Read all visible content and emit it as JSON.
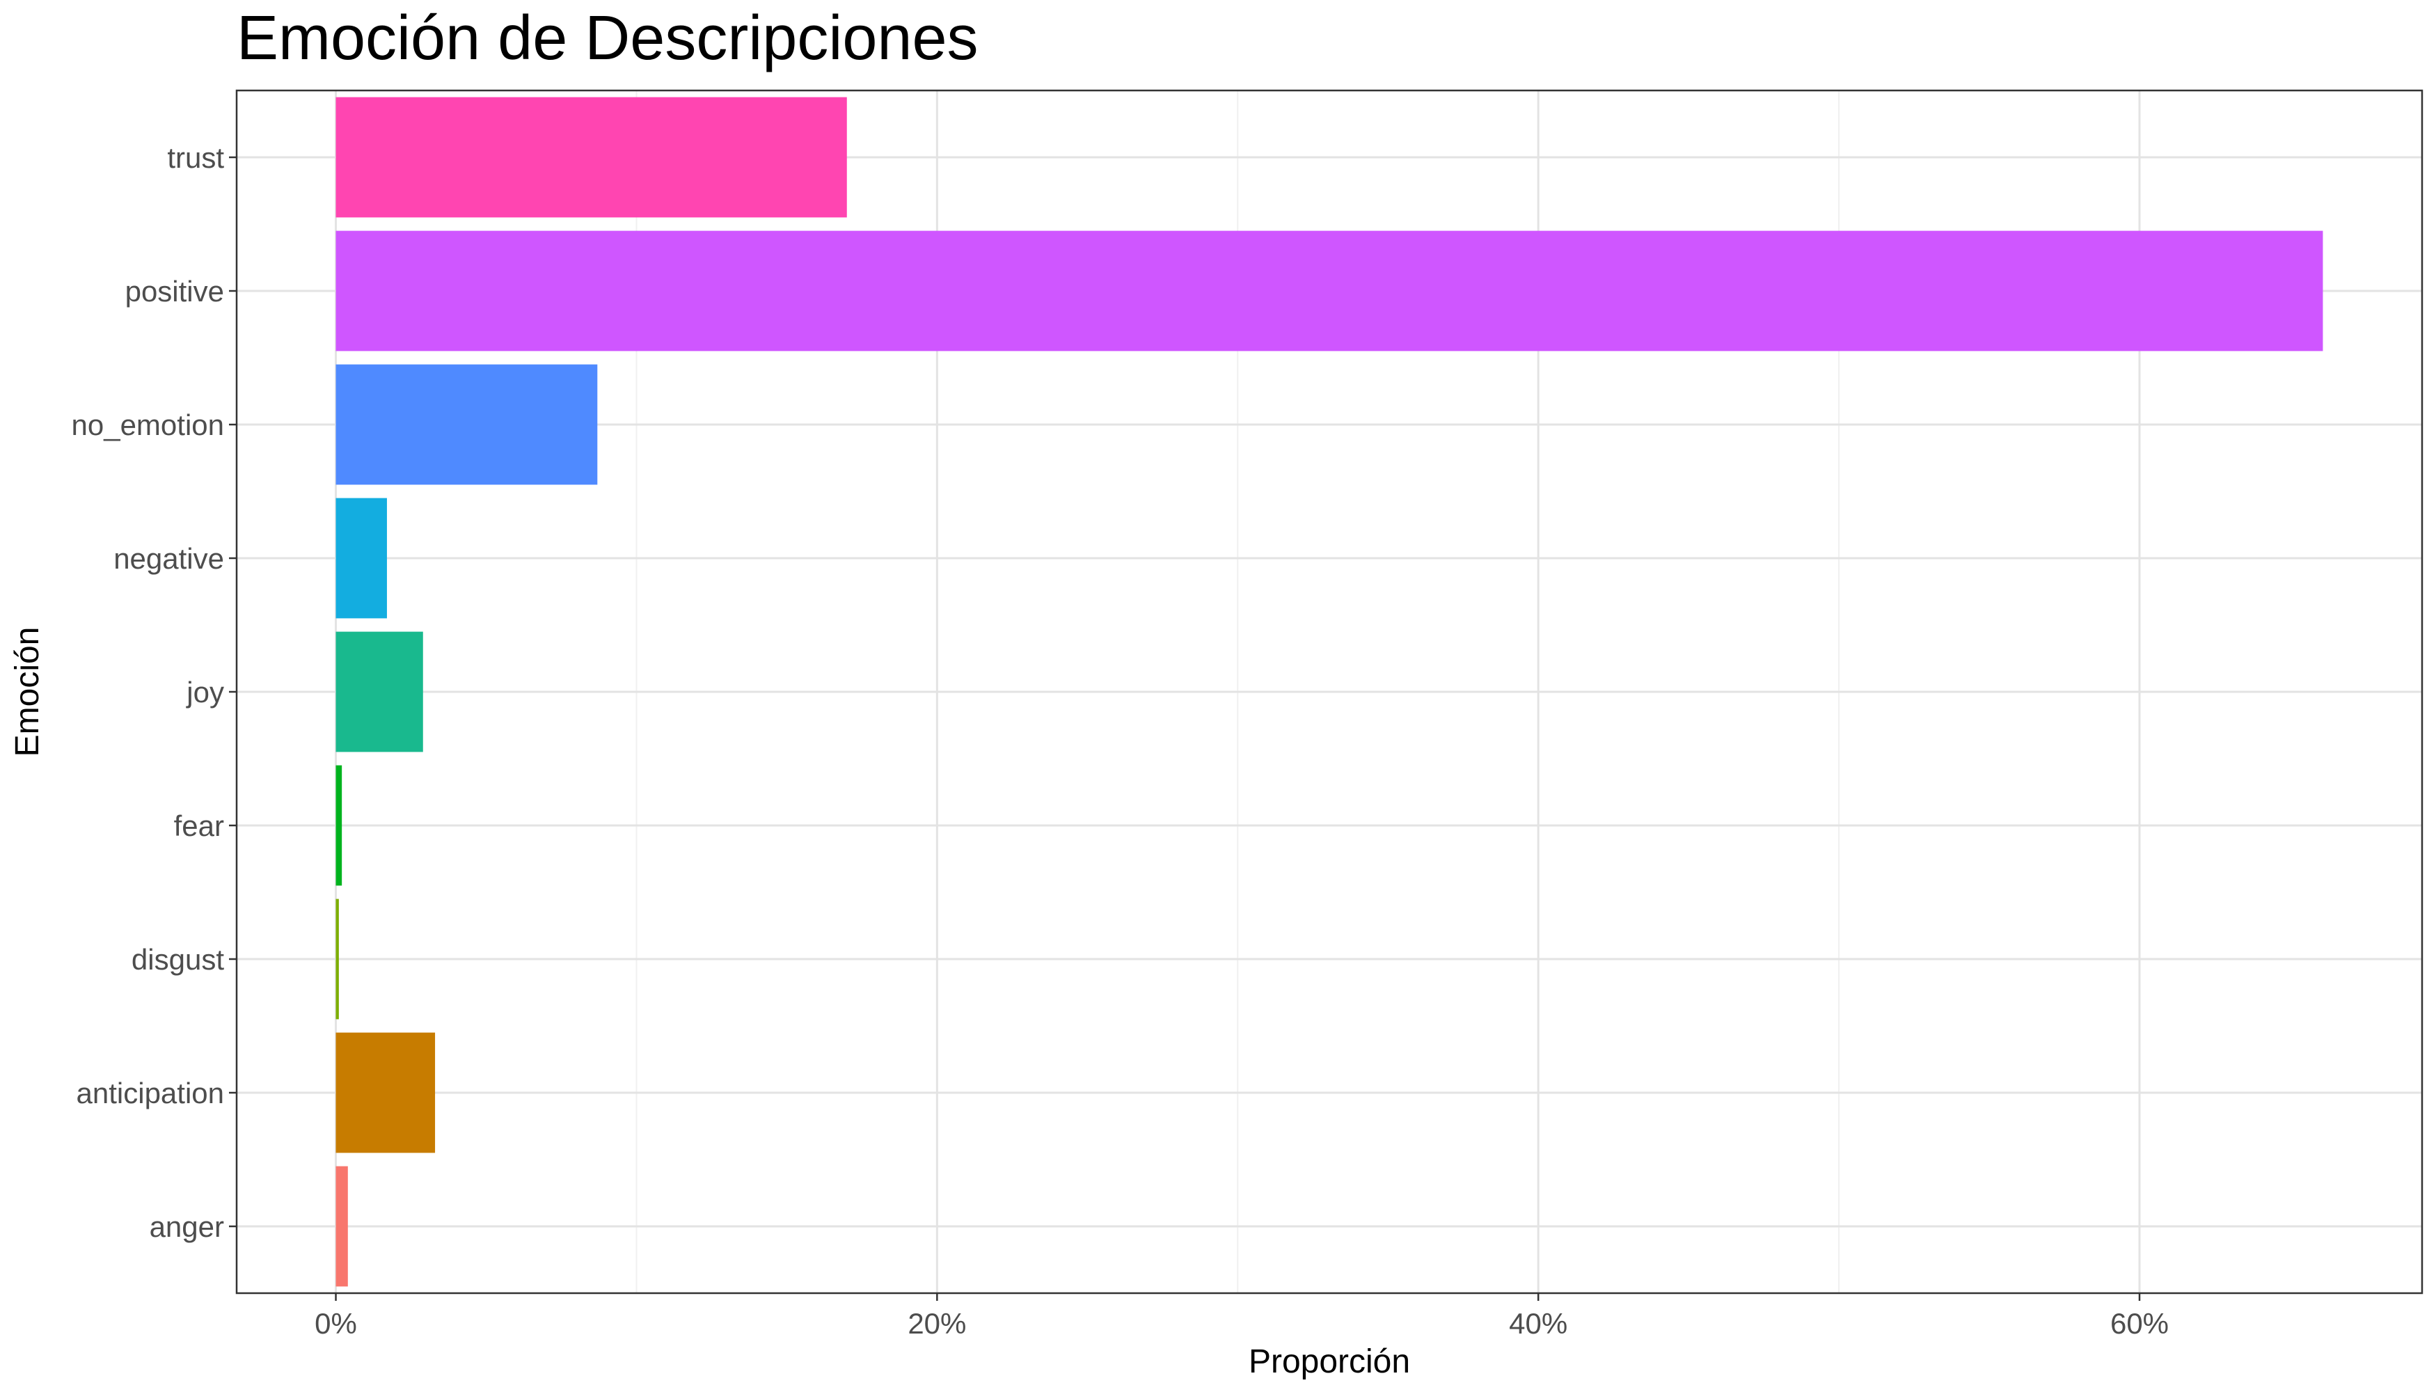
{
  "chart_data": {
    "type": "bar",
    "orientation": "horizontal",
    "title": "Emoción de Descripciones",
    "xlabel": "Proporción",
    "ylabel": "Emoción",
    "categories": [
      "anger",
      "anticipation",
      "disgust",
      "fear",
      "joy",
      "negative",
      "no_emotion",
      "positive",
      "trust"
    ],
    "values": [
      0.4,
      3.3,
      0.1,
      0.2,
      2.9,
      1.7,
      8.7,
      66.1,
      17.0
    ],
    "colors": [
      "#F8766D",
      "#C77C00",
      "#7CAE00",
      "#00B31E",
      "#19B98E",
      "#13ADE0",
      "#4F8AFF",
      "#CF56FF",
      "#FF45B1"
    ],
    "xlim": [
      -3.3,
      69.4
    ],
    "x_ticks": [
      0,
      20,
      40,
      60
    ],
    "x_tick_labels": [
      "0%",
      "20%",
      "40%",
      "60%"
    ],
    "grid": true,
    "legend": "none"
  }
}
